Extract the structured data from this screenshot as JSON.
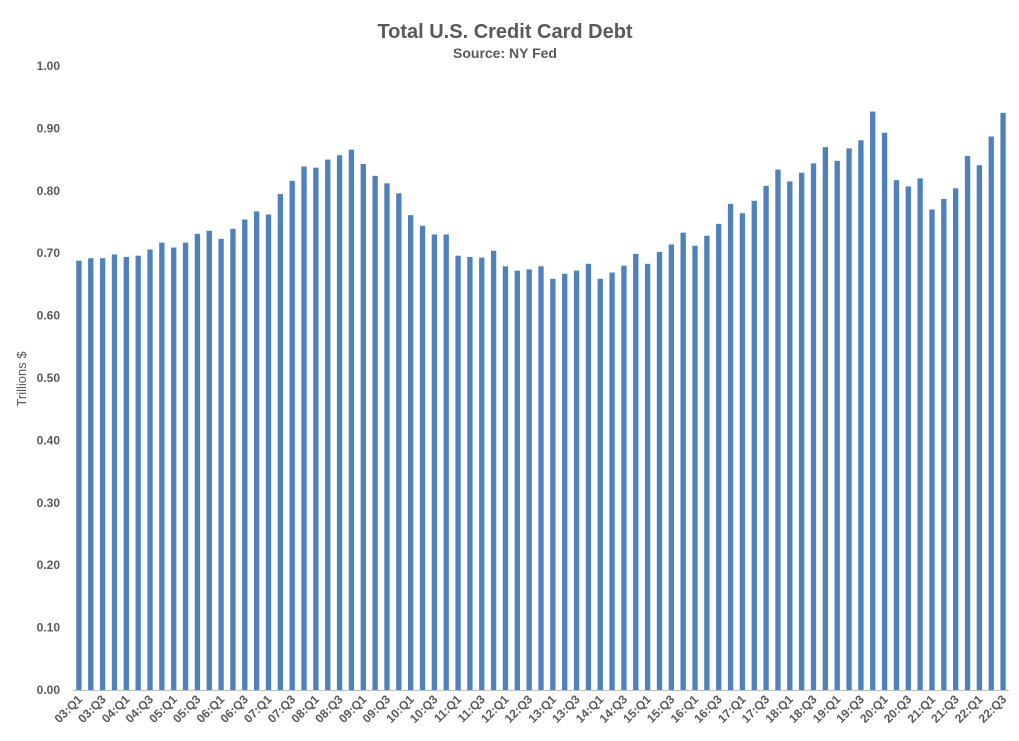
{
  "chart_data": {
    "type": "bar",
    "title": "Total U.S. Credit Card Debt",
    "subtitle": "Source: NY Fed",
    "xlabel": "",
    "ylabel": "Trillions $",
    "ylim": [
      0,
      1.0
    ],
    "yticks": [
      "0.00",
      "0.10",
      "0.20",
      "0.30",
      "0.40",
      "0.50",
      "0.60",
      "0.70",
      "0.80",
      "0.90",
      "1.00"
    ],
    "grid": false,
    "bar_color": "#4F81BD",
    "categories": [
      "03:Q1",
      "03:Q2",
      "03:Q3",
      "03:Q4",
      "04:Q1",
      "04:Q2",
      "04:Q3",
      "04:Q4",
      "05:Q1",
      "05:Q2",
      "05:Q3",
      "05:Q4",
      "06:Q1",
      "06:Q2",
      "06:Q3",
      "06:Q4",
      "07:Q1",
      "07:Q2",
      "07:Q3",
      "07:Q4",
      "08:Q1",
      "08:Q2",
      "08:Q3",
      "08:Q4",
      "09:Q1",
      "09:Q2",
      "09:Q3",
      "09:Q4",
      "10:Q1",
      "10:Q2",
      "10:Q3",
      "10:Q4",
      "11:Q1",
      "11:Q2",
      "11:Q3",
      "11:Q4",
      "12:Q1",
      "12:Q2",
      "12:Q3",
      "12:Q4",
      "13:Q1",
      "13:Q2",
      "13:Q3",
      "13:Q4",
      "14:Q1",
      "14:Q2",
      "14:Q3",
      "14:Q4",
      "15:Q1",
      "15:Q2",
      "15:Q3",
      "15:Q4",
      "16:Q1",
      "16:Q2",
      "16:Q3",
      "16:Q4",
      "17:Q1",
      "17:Q2",
      "17:Q3",
      "17:Q4",
      "18:Q1",
      "18:Q2",
      "18:Q3",
      "18:Q4",
      "19:Q1",
      "19:Q2",
      "19:Q3",
      "19:Q4",
      "20:Q1",
      "20:Q2",
      "20:Q3",
      "20:Q4",
      "21:Q1",
      "21:Q2",
      "21:Q3",
      "21:Q4",
      "22:Q1",
      "22:Q2",
      "22:Q3"
    ],
    "visible_x_tick_labels": [
      "03:Q1",
      "03:Q3",
      "04:Q1",
      "04:Q3",
      "05:Q1",
      "05:Q3",
      "06:Q1",
      "06:Q3",
      "07:Q1",
      "07:Q3",
      "08:Q1",
      "08:Q3",
      "09:Q1",
      "09:Q3",
      "10:Q1",
      "10:Q3",
      "11:Q1",
      "11:Q3",
      "12:Q1",
      "12:Q3",
      "13:Q1",
      "13:Q3",
      "14:Q1",
      "14:Q3",
      "15:Q1",
      "15:Q3",
      "16:Q1",
      "16:Q3",
      "17:Q1",
      "17:Q3",
      "18:Q1",
      "18:Q3",
      "19:Q1",
      "19:Q3",
      "20:Q1",
      "20:Q3",
      "21:Q1",
      "21:Q3",
      "22:Q1",
      "22:Q3"
    ],
    "values": [
      0.688,
      0.692,
      0.692,
      0.698,
      0.694,
      0.696,
      0.706,
      0.717,
      0.709,
      0.717,
      0.731,
      0.736,
      0.723,
      0.739,
      0.754,
      0.767,
      0.762,
      0.795,
      0.816,
      0.839,
      0.837,
      0.85,
      0.857,
      0.866,
      0.843,
      0.824,
      0.812,
      0.796,
      0.761,
      0.744,
      0.73,
      0.73,
      0.696,
      0.694,
      0.693,
      0.704,
      0.679,
      0.672,
      0.674,
      0.679,
      0.659,
      0.667,
      0.672,
      0.683,
      0.659,
      0.669,
      0.68,
      0.699,
      0.683,
      0.702,
      0.714,
      0.733,
      0.712,
      0.728,
      0.747,
      0.779,
      0.764,
      0.784,
      0.808,
      0.834,
      0.815,
      0.829,
      0.844,
      0.87,
      0.848,
      0.868,
      0.881,
      0.927,
      0.893,
      0.817,
      0.807,
      0.82,
      0.77,
      0.787,
      0.804,
      0.856,
      0.841,
      0.887,
      0.925
    ]
  }
}
